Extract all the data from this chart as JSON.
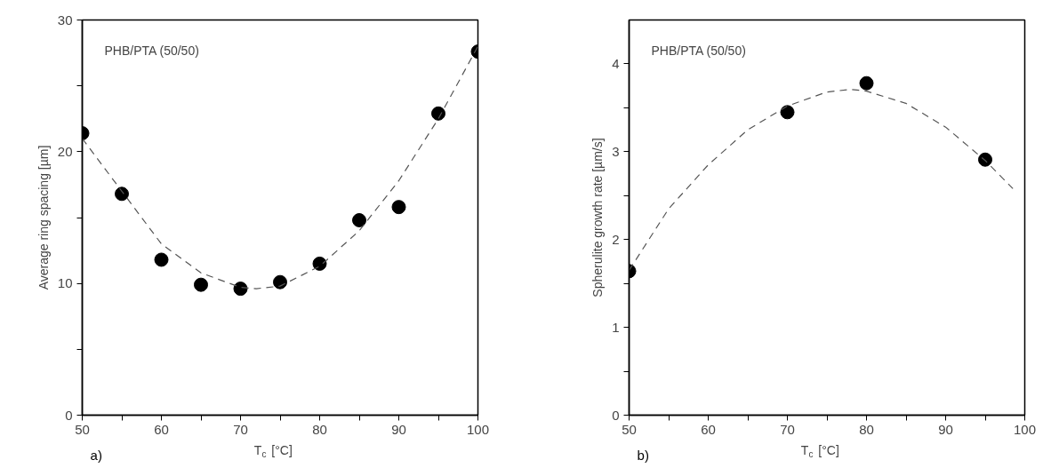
{
  "chart_data": [
    {
      "type": "scatter",
      "xlabel": "T$_{c}$ [°C]",
      "ylabel": "Average ring spacing [µm]",
      "annotations": [
        "PHB/PTA (50/50)",
        "a)"
      ],
      "grid": false,
      "xlim": [
        50,
        100
      ],
      "ylim": [
        0,
        30
      ],
      "xticks": [
        50,
        {
          "value": 55,
          "label": null
        },
        60,
        {
          "value": 65,
          "label": null
        },
        70,
        {
          "value": 75,
          "label": null
        },
        80,
        {
          "value": 85,
          "label": null
        },
        90,
        {
          "value": 95,
          "label": null
        },
        100
      ],
      "yticks": [
        0,
        {
          "value": 5,
          "label": null
        },
        10,
        {
          "value": 15,
          "label": null
        },
        20,
        {
          "value": 25,
          "label": null
        },
        30
      ],
      "x": [
        50,
        55,
        60,
        65,
        70,
        75,
        80,
        85,
        90,
        95,
        100
      ],
      "series": [
        {
          "color": "#000000",
          "marker": "circle",
          "values": [
            21.4,
            16.8,
            11.8,
            9.9,
            9.6,
            10.1,
            11.5,
            14.8,
            15.8,
            22.9,
            27.6
          ]
        },
        {
          "type": "line",
          "color": "#555555",
          "line_style": "dashed",
          "x": [
            50,
            55,
            60,
            65,
            70,
            72,
            75,
            80,
            85,
            90,
            95,
            100
          ],
          "values": [
            21,
            17,
            13,
            10.8,
            9.7,
            9.6,
            9.8,
            11.3,
            14,
            17.8,
            22.5,
            28
          ]
        }
      ]
    },
    {
      "type": "scatter",
      "xlabel": "T$_{c}$ [°C]",
      "ylabel": "Spherulite growth rate [µm/s]",
      "annotations": [
        "PHB/PTA (50/50)",
        "b)"
      ],
      "grid": false,
      "xlim": [
        50,
        100
      ],
      "ylim": [
        0,
        4.5
      ],
      "xticks": [
        50,
        {
          "value": 55,
          "label": null
        },
        60,
        {
          "value": 65,
          "label": null
        },
        70,
        {
          "value": 75,
          "label": null
        },
        80,
        {
          "value": 85,
          "label": null
        },
        90,
        {
          "value": 95,
          "label": null
        },
        100
      ],
      "yticks": [
        0,
        {
          "value": 0.5,
          "label": null
        },
        1,
        {
          "value": 1.5,
          "label": null
        },
        2,
        {
          "value": 2.5,
          "label": null
        },
        3,
        {
          "value": 3.5,
          "label": null
        },
        4
      ],
      "x": [
        50,
        70,
        80,
        95
      ],
      "series": [
        {
          "color": "#000000",
          "marker": "circle",
          "values": [
            1.64,
            3.45,
            3.78,
            2.91
          ]
        },
        {
          "type": "line",
          "color": "#555555",
          "line_style": "dashed",
          "x": [
            50,
            55,
            60,
            65,
            70,
            75,
            78,
            80,
            85,
            90,
            95,
            98.5
          ],
          "values": [
            1.65,
            2.35,
            2.85,
            3.25,
            3.52,
            3.68,
            3.71,
            3.69,
            3.55,
            3.28,
            2.9,
            2.58
          ]
        }
      ]
    }
  ]
}
